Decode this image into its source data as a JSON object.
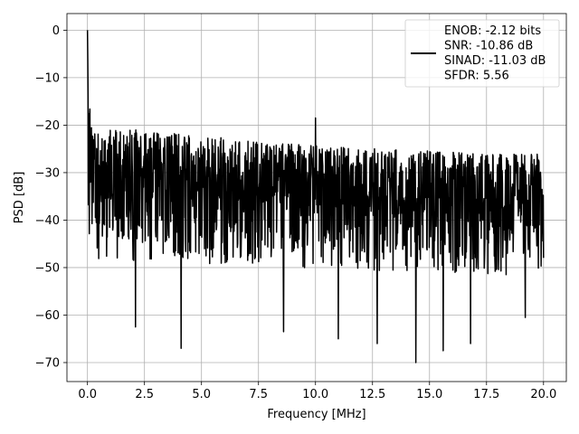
{
  "chart_data": {
    "type": "line",
    "xlabel": "Frequency [MHz]",
    "ylabel": "PSD [dB]",
    "xlim": [
      -0.9,
      21.0
    ],
    "ylim": [
      -74,
      3.5
    ],
    "xticks": [
      0.0,
      2.5,
      5.0,
      7.5,
      10.0,
      12.5,
      15.0,
      17.5,
      20.0
    ],
    "xtick_labels": [
      "0.0",
      "2.5",
      "5.0",
      "7.5",
      "10.0",
      "12.5",
      "15.0",
      "17.5",
      "20.0"
    ],
    "yticks": [
      0,
      -10,
      -20,
      -30,
      -40,
      -50,
      -60,
      -70
    ],
    "ytick_labels": [
      "0",
      "−10",
      "−20",
      "−30",
      "−40",
      "−50",
      "−60",
      "−70"
    ],
    "grid": true,
    "legend_position": "top-right",
    "line_color": "#000000",
    "legend": [
      "ENOB: -2.12 bits",
      "SNR: -10.86 dB",
      "SINAD: -11.03 dB",
      "SFDR: 5.56"
    ],
    "series": [
      {
        "x_range": [
          0.0,
          20.0
        ],
        "peak": {
          "x": 0.0,
          "y": 0.0
        },
        "spur": {
          "x": 10.0,
          "y": -18.5
        },
        "upper_envelope_db": [
          -20,
          -21,
          -22,
          -23,
          -24,
          -24.5,
          -25,
          -25.5,
          -26,
          -26
        ],
        "median_db": [
          -32,
          -33,
          -33.5,
          -34,
          -34,
          -34.5,
          -35,
          -35,
          -35.5,
          -35.5
        ],
        "deep_nulls": [
          {
            "x": 2.1,
            "y": -62.5
          },
          {
            "x": 4.1,
            "y": -67.0
          },
          {
            "x": 8.6,
            "y": -63.5
          },
          {
            "x": 11.0,
            "y": -65.0
          },
          {
            "x": 12.7,
            "y": -66.0
          },
          {
            "x": 14.4,
            "y": -70.0
          },
          {
            "x": 15.6,
            "y": -67.5
          },
          {
            "x": 16.8,
            "y": -66.0
          },
          {
            "x": 19.2,
            "y": -60.5
          }
        ]
      }
    ]
  }
}
